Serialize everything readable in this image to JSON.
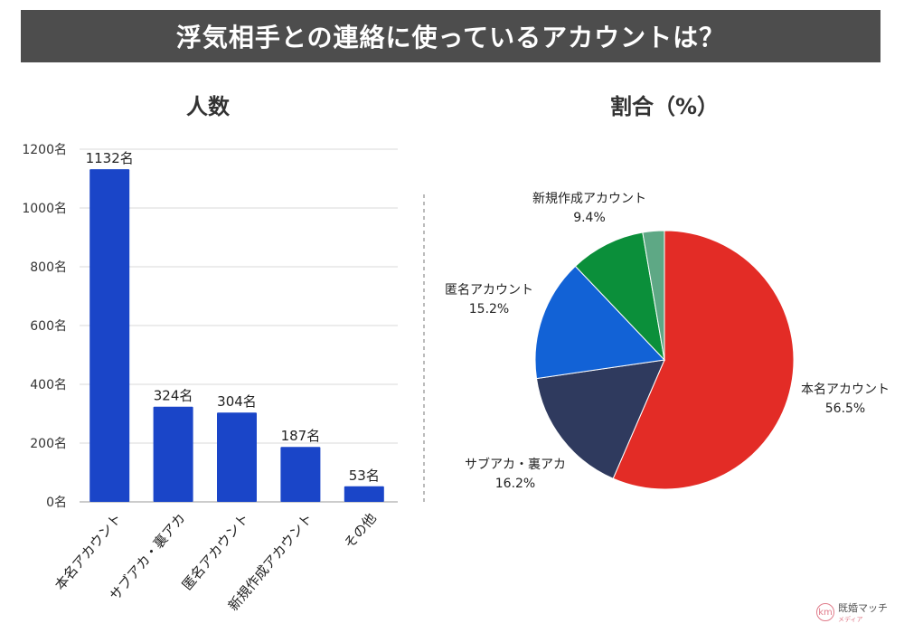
{
  "title": "浮気相手との連絡に使っているアカウントは？",
  "brand": {
    "name": "既婚マッチ",
    "sub": "メディア"
  },
  "chart_data": [
    {
      "type": "bar",
      "title": "人数",
      "categories": [
        "本名アカウント",
        "サブアカ・裏アカ",
        "匿名アカウント",
        "新規作成アカウント",
        "その他"
      ],
      "values": [
        1132,
        324,
        304,
        187,
        53
      ],
      "value_labels": [
        "1132名",
        "324名",
        "304名",
        "187名",
        "53名"
      ],
      "yticks": [
        0,
        200,
        400,
        600,
        800,
        1000,
        1200
      ],
      "ytick_labels": [
        "0名",
        "200名",
        "400名",
        "600名",
        "800名",
        "1000名",
        "1200名"
      ],
      "ylim": [
        0,
        1200
      ],
      "grid": true,
      "color": "#1a45c8"
    },
    {
      "type": "pie",
      "title": "割合（%）",
      "slices": [
        {
          "label": "本名アカウント",
          "value": 56.5,
          "value_label": "56.5%",
          "color": "#e32c26"
        },
        {
          "label": "サブアカ・裏アカ",
          "value": 16.2,
          "value_label": "16.2%",
          "color": "#2f3a5e"
        },
        {
          "label": "匿名アカウント",
          "value": 15.2,
          "value_label": "15.2%",
          "color": "#1262d6"
        },
        {
          "label": "新規作成アカウント",
          "value": 9.4,
          "value_label": "9.4%",
          "color": "#0b8f3a"
        },
        {
          "label": "その他",
          "value": 2.7,
          "value_label": "",
          "color": "#5ea885"
        }
      ]
    }
  ]
}
